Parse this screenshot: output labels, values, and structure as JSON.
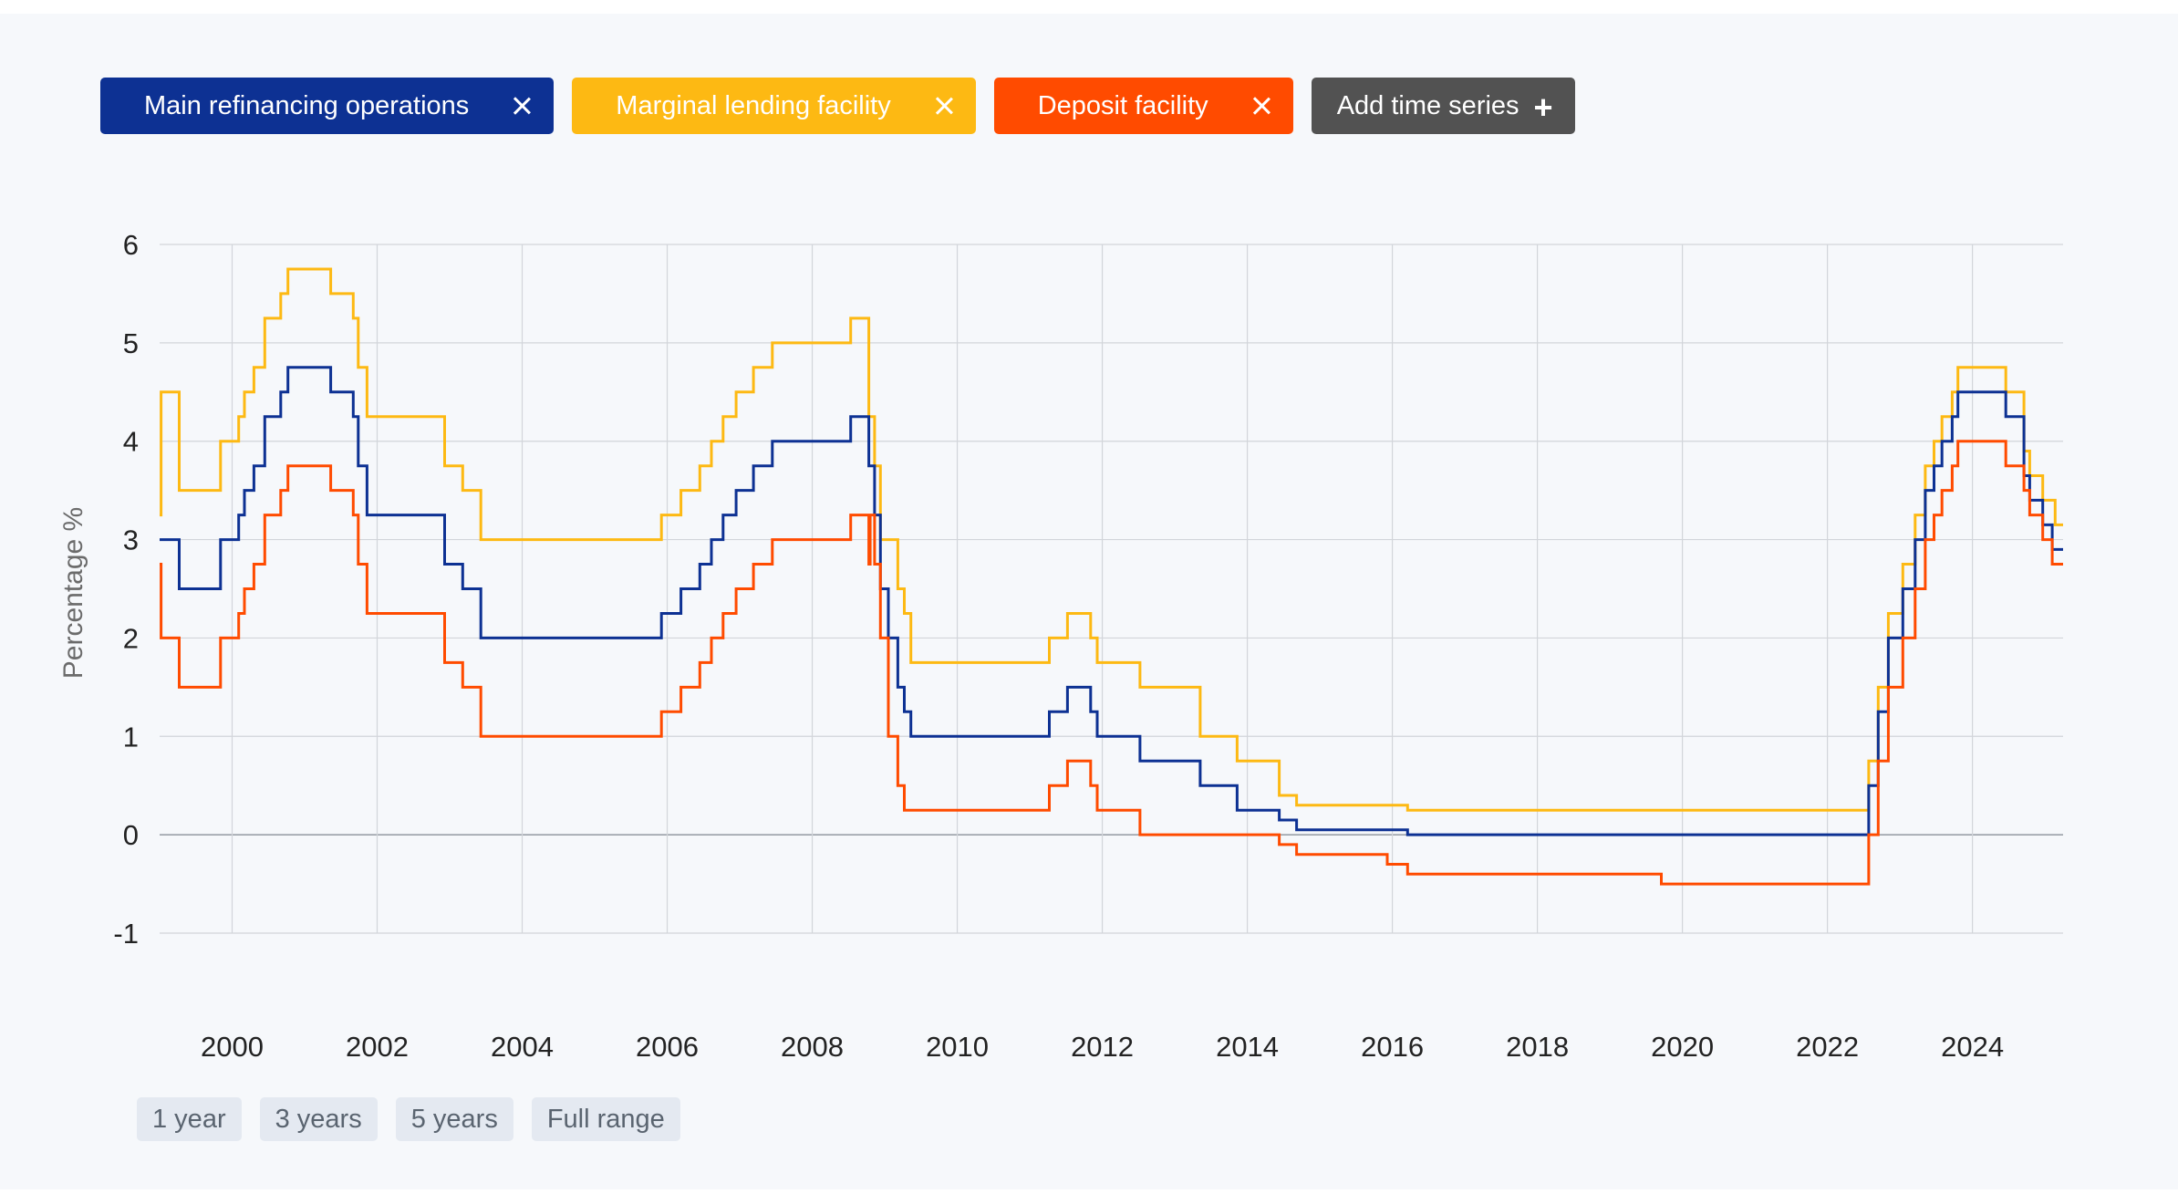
{
  "series_chips": [
    {
      "label": "Main refinancing operations",
      "color": "#0d3193",
      "remove_icon": "close-icon"
    },
    {
      "label": "Marginal lending facility",
      "color": "#fdb913",
      "remove_icon": "close-icon"
    },
    {
      "label": "Deposit facility",
      "color": "#ff4b00",
      "remove_icon": "close-icon"
    }
  ],
  "add_series": {
    "label": "Add time series",
    "icon": "plus-icon",
    "color": "#525252"
  },
  "range_buttons": [
    "1 year",
    "3 years",
    "5 years",
    "Full range"
  ],
  "chart_data": {
    "type": "line",
    "step": true,
    "ylabel": "Percentage %",
    "xlabel": "",
    "title": "",
    "ylim": [
      -1,
      6
    ],
    "xlim": [
      1999.0,
      2025.25
    ],
    "yticks": [
      -1,
      0,
      1,
      2,
      3,
      4,
      5,
      6
    ],
    "xticks": [
      2000,
      2002,
      2004,
      2006,
      2008,
      2010,
      2012,
      2014,
      2016,
      2018,
      2020,
      2022,
      2024
    ],
    "grid": true,
    "legend": "chips above chart",
    "series": [
      {
        "name": "Main refinancing operations",
        "color": "#0d3193",
        "points": [
          [
            1999.0,
            3.0
          ],
          [
            1999.27,
            2.5
          ],
          [
            1999.84,
            3.0
          ],
          [
            2000.09,
            3.25
          ],
          [
            2000.17,
            3.5
          ],
          [
            2000.3,
            3.75
          ],
          [
            2000.45,
            4.25
          ],
          [
            2000.67,
            4.5
          ],
          [
            2000.77,
            4.75
          ],
          [
            2001.36,
            4.5
          ],
          [
            2001.67,
            4.25
          ],
          [
            2001.74,
            3.75
          ],
          [
            2001.86,
            3.25
          ],
          [
            2002.93,
            2.75
          ],
          [
            2003.18,
            2.5
          ],
          [
            2003.43,
            2.0
          ],
          [
            2005.92,
            2.25
          ],
          [
            2006.19,
            2.5
          ],
          [
            2006.45,
            2.75
          ],
          [
            2006.61,
            3.0
          ],
          [
            2006.77,
            3.25
          ],
          [
            2006.95,
            3.5
          ],
          [
            2007.19,
            3.75
          ],
          [
            2007.45,
            4.0
          ],
          [
            2008.53,
            4.25
          ],
          [
            2008.78,
            3.75
          ],
          [
            2008.86,
            3.25
          ],
          [
            2008.94,
            2.5
          ],
          [
            2009.05,
            2.0
          ],
          [
            2009.18,
            1.5
          ],
          [
            2009.27,
            1.25
          ],
          [
            2009.36,
            1.0
          ],
          [
            2011.27,
            1.25
          ],
          [
            2011.52,
            1.5
          ],
          [
            2011.84,
            1.25
          ],
          [
            2011.93,
            1.0
          ],
          [
            2012.52,
            0.75
          ],
          [
            2013.35,
            0.5
          ],
          [
            2013.86,
            0.25
          ],
          [
            2014.44,
            0.15
          ],
          [
            2014.68,
            0.05
          ],
          [
            2016.21,
            0.0
          ],
          [
            2022.57,
            0.5
          ],
          [
            2022.7,
            1.25
          ],
          [
            2022.84,
            2.0
          ],
          [
            2023.04,
            2.5
          ],
          [
            2023.21,
            3.0
          ],
          [
            2023.35,
            3.5
          ],
          [
            2023.47,
            3.75
          ],
          [
            2023.58,
            4.0
          ],
          [
            2023.72,
            4.25
          ],
          [
            2023.8,
            4.5
          ],
          [
            2024.46,
            4.25
          ],
          [
            2024.71,
            3.65
          ],
          [
            2024.79,
            3.4
          ],
          [
            2024.97,
            3.15
          ],
          [
            2025.1,
            2.9
          ],
          [
            2025.25,
            2.9
          ]
        ]
      },
      {
        "name": "Marginal lending facility",
        "color": "#fdb913",
        "points": [
          [
            1999.0,
            3.25
          ],
          [
            1999.02,
            4.5
          ],
          [
            1999.27,
            3.5
          ],
          [
            1999.84,
            4.0
          ],
          [
            2000.09,
            4.25
          ],
          [
            2000.17,
            4.5
          ],
          [
            2000.3,
            4.75
          ],
          [
            2000.45,
            5.25
          ],
          [
            2000.67,
            5.5
          ],
          [
            2000.77,
            5.75
          ],
          [
            2001.36,
            5.5
          ],
          [
            2001.67,
            5.25
          ],
          [
            2001.74,
            4.75
          ],
          [
            2001.86,
            4.25
          ],
          [
            2002.93,
            3.75
          ],
          [
            2003.18,
            3.5
          ],
          [
            2003.43,
            3.0
          ],
          [
            2005.92,
            3.25
          ],
          [
            2006.19,
            3.5
          ],
          [
            2006.45,
            3.75
          ],
          [
            2006.61,
            4.0
          ],
          [
            2006.77,
            4.25
          ],
          [
            2006.95,
            4.5
          ],
          [
            2007.19,
            4.75
          ],
          [
            2007.45,
            5.0
          ],
          [
            2008.53,
            5.25
          ],
          [
            2008.78,
            4.25
          ],
          [
            2008.86,
            3.75
          ],
          [
            2008.94,
            3.0
          ],
          [
            2009.18,
            2.5
          ],
          [
            2009.27,
            2.25
          ],
          [
            2009.36,
            1.75
          ],
          [
            2011.27,
            2.0
          ],
          [
            2011.52,
            2.25
          ],
          [
            2011.84,
            2.0
          ],
          [
            2011.93,
            1.75
          ],
          [
            2012.52,
            1.5
          ],
          [
            2013.35,
            1.0
          ],
          [
            2013.86,
            0.75
          ],
          [
            2014.44,
            0.4
          ],
          [
            2014.68,
            0.3
          ],
          [
            2016.21,
            0.25
          ],
          [
            2022.57,
            0.75
          ],
          [
            2022.7,
            1.5
          ],
          [
            2022.84,
            2.25
          ],
          [
            2023.04,
            2.75
          ],
          [
            2023.21,
            3.25
          ],
          [
            2023.35,
            3.75
          ],
          [
            2023.47,
            4.0
          ],
          [
            2023.58,
            4.25
          ],
          [
            2023.72,
            4.5
          ],
          [
            2023.8,
            4.75
          ],
          [
            2024.46,
            4.5
          ],
          [
            2024.71,
            3.9
          ],
          [
            2024.79,
            3.65
          ],
          [
            2024.97,
            3.4
          ],
          [
            2025.1,
            3.4
          ],
          [
            2025.14,
            3.15
          ],
          [
            2025.25,
            3.15
          ]
        ]
      },
      {
        "name": "Deposit facility",
        "color": "#ff4b00",
        "points": [
          [
            1999.0,
            2.75
          ],
          [
            1999.02,
            2.0
          ],
          [
            1999.27,
            1.5
          ],
          [
            1999.84,
            2.0
          ],
          [
            2000.09,
            2.25
          ],
          [
            2000.17,
            2.5
          ],
          [
            2000.3,
            2.75
          ],
          [
            2000.45,
            3.25
          ],
          [
            2000.67,
            3.5
          ],
          [
            2000.77,
            3.75
          ],
          [
            2001.36,
            3.5
          ],
          [
            2001.67,
            3.25
          ],
          [
            2001.74,
            2.75
          ],
          [
            2001.86,
            2.25
          ],
          [
            2002.93,
            1.75
          ],
          [
            2003.18,
            1.5
          ],
          [
            2003.43,
            1.0
          ],
          [
            2005.92,
            1.25
          ],
          [
            2006.19,
            1.5
          ],
          [
            2006.45,
            1.75
          ],
          [
            2006.61,
            2.0
          ],
          [
            2006.77,
            2.25
          ],
          [
            2006.95,
            2.5
          ],
          [
            2007.19,
            2.75
          ],
          [
            2007.45,
            3.0
          ],
          [
            2008.53,
            3.25
          ],
          [
            2008.78,
            2.75
          ],
          [
            2008.8,
            3.25
          ],
          [
            2008.86,
            2.75
          ],
          [
            2008.94,
            2.0
          ],
          [
            2009.05,
            1.0
          ],
          [
            2009.18,
            0.5
          ],
          [
            2009.27,
            0.25
          ],
          [
            2011.27,
            0.5
          ],
          [
            2011.52,
            0.75
          ],
          [
            2011.84,
            0.5
          ],
          [
            2011.93,
            0.25
          ],
          [
            2012.52,
            0.0
          ],
          [
            2014.44,
            -0.1
          ],
          [
            2014.68,
            -0.2
          ],
          [
            2015.93,
            -0.3
          ],
          [
            2016.21,
            -0.4
          ],
          [
            2019.71,
            -0.5
          ],
          [
            2022.57,
            0.0
          ],
          [
            2022.7,
            0.75
          ],
          [
            2022.84,
            1.5
          ],
          [
            2023.04,
            2.0
          ],
          [
            2023.21,
            2.5
          ],
          [
            2023.35,
            3.0
          ],
          [
            2023.47,
            3.25
          ],
          [
            2023.58,
            3.5
          ],
          [
            2023.72,
            3.75
          ],
          [
            2023.8,
            4.0
          ],
          [
            2024.46,
            3.75
          ],
          [
            2024.71,
            3.5
          ],
          [
            2024.79,
            3.25
          ],
          [
            2024.97,
            3.0
          ],
          [
            2025.1,
            2.75
          ],
          [
            2025.25,
            2.75
          ]
        ]
      }
    ]
  }
}
